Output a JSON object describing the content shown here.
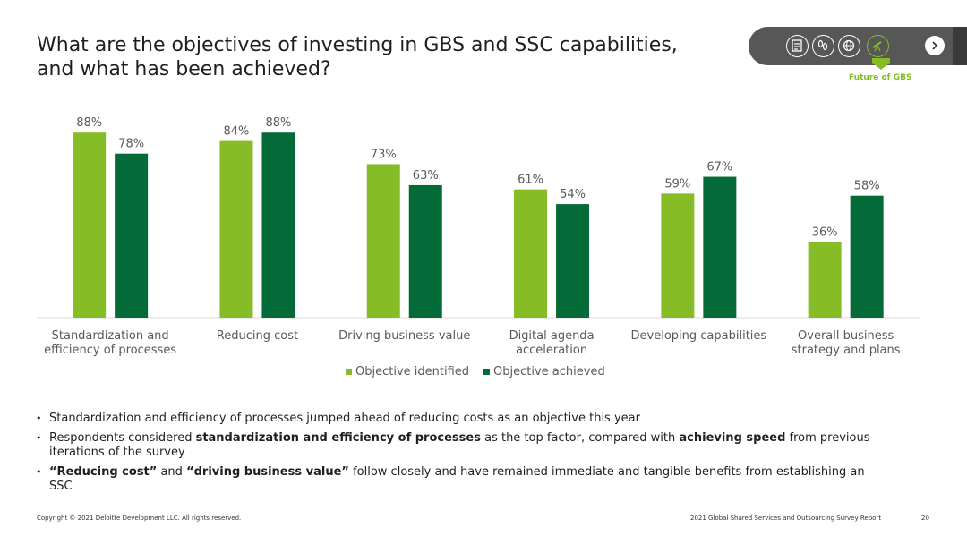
{
  "slide": {
    "title_line1": "What are the objectives of investing in GBS and SSC capabilities,",
    "title_line2": "and what has been achieved?"
  },
  "nav": {
    "icons": [
      "report-icon",
      "footprints-icon",
      "globe-icon",
      "telescope-icon"
    ],
    "active_icon": "telescope-icon",
    "caption": "Future of GBS",
    "next_icon": "chevron-right-icon"
  },
  "colors": {
    "identified": "#86bc25",
    "achieved": "#046a38",
    "nav_bg": "#575757"
  },
  "chart_data": {
    "type": "bar",
    "categories": [
      [
        "Standardization and",
        "efficiency of processes"
      ],
      [
        "Reducing cost"
      ],
      [
        "Driving business value"
      ],
      [
        "Digital agenda",
        "acceleration"
      ],
      [
        "Developing capabilities"
      ],
      [
        "Overall business",
        "strategy and plans"
      ]
    ],
    "series": [
      {
        "name": "Objective identified",
        "values": [
          88,
          84,
          73,
          61,
          59,
          36
        ],
        "labels": [
          "88%",
          "84%",
          "73%",
          "61%",
          "59%",
          "36%"
        ],
        "color": "#86bc25"
      },
      {
        "name": "Objective achieved",
        "values": [
          78,
          88,
          63,
          54,
          67,
          58
        ],
        "labels": [
          "78%",
          "88%",
          "63%",
          "54%",
          "67%",
          "58%"
        ],
        "color": "#046a38"
      }
    ],
    "ylim": [
      0,
      100
    ],
    "grid": false,
    "legend_position": "bottom"
  },
  "bullets": [
    {
      "parts": [
        {
          "text": "Standardization and efficiency of processes jumped ahead of reducing costs as an objective this year",
          "bold": false
        }
      ]
    },
    {
      "parts": [
        {
          "text": "Respondents considered ",
          "bold": false
        },
        {
          "text": "standardization and efficiency of processes",
          "bold": true
        },
        {
          "text": " as the top factor, compared with ",
          "bold": false
        },
        {
          "text": "achieving speed",
          "bold": true
        },
        {
          "text": " from previous iterations of the survey",
          "bold": false
        }
      ]
    },
    {
      "parts": [
        {
          "text": "“Reducing cost”",
          "bold": true
        },
        {
          "text": " and ",
          "bold": false
        },
        {
          "text": "“driving business value”",
          "bold": true
        },
        {
          "text": " follow closely and have remained immediate and tangible benefits from establishing an SSC",
          "bold": false
        }
      ]
    }
  ],
  "footer": {
    "copyright": "Copyright © 2021 Deloitte Development LLC. All rights reserved.",
    "report": "2021 Global Shared Services and Outsourcing Survey Report",
    "page": "20"
  }
}
